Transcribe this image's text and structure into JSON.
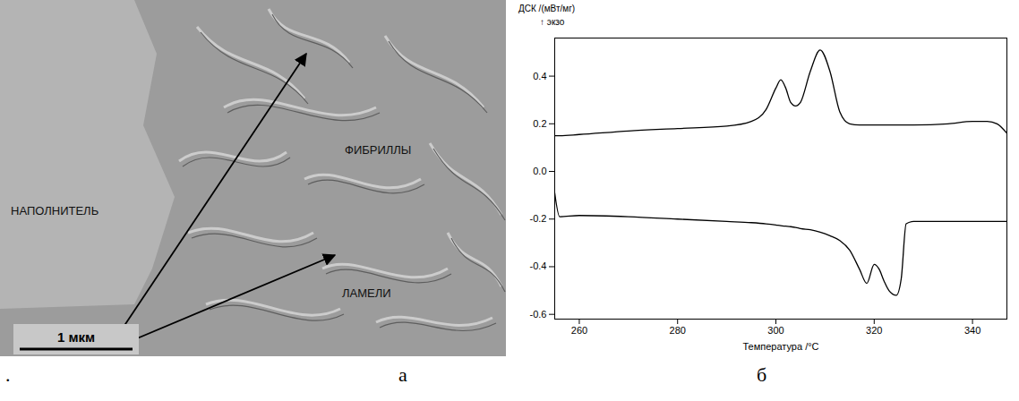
{
  "figure_marker": ".",
  "panels": [
    {
      "letter": "а",
      "type": "image",
      "labels": [
        "НАПОЛНИТЕЛЬ",
        "ФИБРИЛЛЫ",
        "ЛАМЕЛИ"
      ],
      "scale_bar": "1 мкм"
    }
  ],
  "chart_data": {
    "type": "line",
    "panel_letter": "б",
    "y_label": "ДСК /(мВт/мг)",
    "annotation": "↑ экзо",
    "x_label": "Температура /°C",
    "xlim": [
      255,
      347
    ],
    "xticks": [
      260,
      280,
      300,
      320,
      340
    ],
    "ylim": [
      -0.62,
      0.56
    ],
    "yticks": [
      0.4,
      0.2,
      {
        "value": 0,
        "label": "0.0"
      },
      -0.2,
      -0.4,
      -0.6
    ],
    "grid": false,
    "x": [
      255,
      256,
      260,
      270,
      280,
      290,
      295,
      298,
      300,
      301,
      302,
      303,
      304,
      305,
      307,
      309,
      311,
      313,
      315,
      317,
      318.5,
      320,
      321,
      322,
      323,
      324.5,
      325.5,
      326.5,
      328,
      335,
      340,
      343,
      345,
      347
    ],
    "series": [
      {
        "color": "#000000",
        "values": [
          0.15,
          0.15,
          0.155,
          0.17,
          0.18,
          0.19,
          0.21,
          0.26,
          0.35,
          0.385,
          0.35,
          0.29,
          0.275,
          0.29,
          0.42,
          0.51,
          0.42,
          0.25,
          0.2,
          0.195,
          0.195,
          0.195,
          0.195,
          0.195,
          0.195,
          0.195,
          0.195,
          0.195,
          0.195,
          0.2,
          0.21,
          0.21,
          0.2,
          0.16
        ]
      },
      {
        "color": "#000000",
        "values": [
          -0.09,
          -0.19,
          -0.185,
          -0.19,
          -0.2,
          -0.21,
          -0.215,
          -0.22,
          -0.225,
          -0.228,
          -0.23,
          -0.232,
          -0.235,
          -0.24,
          -0.245,
          -0.255,
          -0.27,
          -0.29,
          -0.33,
          -0.41,
          -0.47,
          -0.39,
          -0.41,
          -0.46,
          -0.5,
          -0.52,
          -0.45,
          -0.22,
          -0.21,
          -0.21,
          -0.21,
          -0.21,
          -0.21,
          -0.21
        ]
      }
    ]
  }
}
